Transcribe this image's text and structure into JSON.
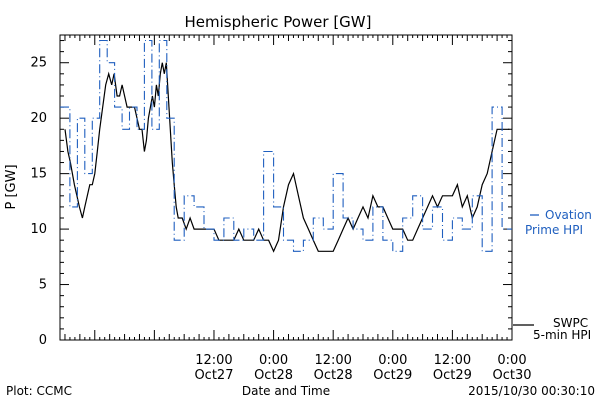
{
  "chart_data": {
    "type": "line",
    "title": "Hemispheric Power [GW]",
    "xlabel": "Date and Time",
    "ylabel": "P [GW]",
    "ylim": [
      0,
      27.5
    ],
    "xlim": [
      -19,
      72
    ],
    "x_unit": "hours from 2015/10/27 00:00",
    "y_ticks": [
      0,
      5,
      10,
      15,
      20,
      25
    ],
    "x_ticks": [
      {
        "x": 12,
        "time": "12:00",
        "date": "Oct27"
      },
      {
        "x": 24,
        "time": "0:00",
        "date": "Oct28"
      },
      {
        "x": 36,
        "time": "12:00",
        "date": "Oct28"
      },
      {
        "x": 48,
        "time": "0:00",
        "date": "Oct29"
      },
      {
        "x": 60,
        "time": "12:00",
        "date": "Oct29"
      },
      {
        "x": 72,
        "time": "0:00",
        "date": "Oct30"
      }
    ],
    "grid": false,
    "series": [
      {
        "name": "SWPC 5-min HPI",
        "style": "solid",
        "color": "#000000",
        "x": [
          -18,
          -17.4,
          -16.9,
          -16.5,
          -16.1,
          -15.6,
          -15.1,
          -14.5,
          -14,
          -13.5,
          -13,
          -12.5,
          -12,
          -11.5,
          -11,
          -10.4,
          -9.8,
          -9.2,
          -8.6,
          -8.1,
          -7.5,
          -7,
          -6.5,
          -6,
          -5.5,
          -5,
          -4.5,
          -4,
          -3.5,
          -3,
          -2.5,
          -2,
          -1.6,
          -1.2,
          -0.8,
          -0.4,
          0,
          0.4,
          0.8,
          1.2,
          1.6,
          2,
          2.4,
          2.8,
          3.2,
          3.6,
          4,
          4.4,
          4.8,
          5.6,
          6.4,
          7.2,
          8,
          9,
          10,
          11,
          12,
          13,
          14,
          15,
          16,
          17,
          18,
          19,
          20,
          21,
          22,
          23,
          24,
          25,
          26,
          27,
          28,
          29,
          30,
          31,
          32,
          33,
          34,
          35,
          36,
          37,
          38,
          39,
          40,
          41,
          42,
          43,
          44,
          45,
          46,
          47,
          48,
          49,
          50,
          51,
          52,
          53,
          54,
          55,
          56,
          57,
          58,
          59,
          60,
          61,
          62,
          63,
          64,
          65,
          66,
          67,
          68,
          69,
          70,
          70.5,
          71,
          71.5
        ],
        "y": [
          19,
          17,
          16,
          15,
          14,
          13,
          12,
          11,
          12,
          13,
          14,
          14,
          15,
          17,
          19,
          21,
          23,
          24,
          23,
          24,
          22,
          22,
          23,
          22,
          21,
          21,
          21,
          21,
          20,
          19,
          19,
          17,
          18,
          20,
          21,
          22,
          21,
          23,
          22,
          24,
          25,
          24,
          25,
          22,
          19,
          16,
          14,
          12,
          11,
          11,
          10,
          11,
          10,
          10,
          10,
          10,
          10,
          9,
          9,
          9,
          9,
          10,
          9,
          9,
          9,
          10,
          9,
          9,
          8,
          9,
          12,
          14,
          15,
          13,
          11,
          10,
          9,
          8,
          8,
          8,
          8,
          9,
          10,
          11,
          10,
          11,
          12,
          11,
          13,
          12,
          12,
          11,
          10,
          10,
          10,
          9,
          9,
          10,
          11,
          12,
          13,
          12,
          13,
          13,
          13,
          14,
          12,
          13,
          11,
          12,
          14,
          15,
          17,
          19,
          19,
          19,
          19,
          19
        ]
      },
      {
        "name": "Ovation Prime HPI",
        "style": "dashed",
        "color": "#1f5fbf",
        "x": [
          -19,
          -17,
          -17,
          -15.5,
          -15.5,
          -14,
          -14,
          -12.5,
          -12.5,
          -11,
          -11,
          -9.5,
          -9.5,
          -8,
          -8,
          -6.5,
          -6.5,
          -5,
          -5,
          -3.5,
          -3.5,
          -2,
          -2,
          -0.5,
          -0.5,
          1,
          1,
          2.5,
          2.5,
          4,
          4,
          6,
          6,
          8,
          8,
          10,
          10,
          12,
          12,
          14,
          14,
          16,
          16,
          18,
          18,
          20,
          20,
          22,
          22,
          24,
          24,
          26,
          26,
          28,
          28,
          30,
          30,
          32,
          32,
          34,
          34,
          36,
          36,
          38,
          38,
          40,
          40,
          42,
          42,
          44,
          44,
          46,
          46,
          48,
          48,
          50,
          50,
          52,
          52,
          54,
          54,
          56,
          56,
          58,
          58,
          60,
          60,
          62,
          62,
          64,
          64,
          66,
          66,
          68,
          68,
          70,
          70,
          72
        ],
        "y": [
          21,
          21,
          12,
          12,
          20,
          20,
          15,
          15,
          20,
          20,
          27,
          27,
          25,
          25,
          21,
          21,
          19,
          19,
          21,
          21,
          19,
          19,
          27,
          27,
          19,
          19,
          27,
          27,
          20,
          20,
          9,
          9,
          13,
          13,
          12,
          12,
          10,
          10,
          9,
          9,
          11,
          11,
          9,
          9,
          10,
          10,
          9,
          9,
          17,
          17,
          12,
          12,
          9,
          9,
          8,
          8,
          9,
          9,
          11,
          11,
          10,
          10,
          15,
          15,
          11,
          11,
          10,
          10,
          9,
          9,
          12,
          12,
          9,
          9,
          8,
          8,
          11,
          11,
          13,
          13,
          10,
          10,
          12,
          12,
          9,
          9,
          11,
          11,
          10,
          10,
          13,
          13,
          8,
          8,
          21,
          21,
          10,
          10
        ]
      }
    ],
    "legend": [
      {
        "series": "Ovation Prime HPI",
        "lines": [
          "Ovation",
          "Prime HPI"
        ],
        "color": "#1f5fbf"
      },
      {
        "series": "SWPC 5-min HPI",
        "lines": [
          "SWPC",
          "5-min HPI"
        ],
        "color": "#000000"
      }
    ],
    "annotations": {
      "plot_credit": "Plot: CCMC",
      "timestamp": "2015/10/30 00:30:10"
    }
  }
}
